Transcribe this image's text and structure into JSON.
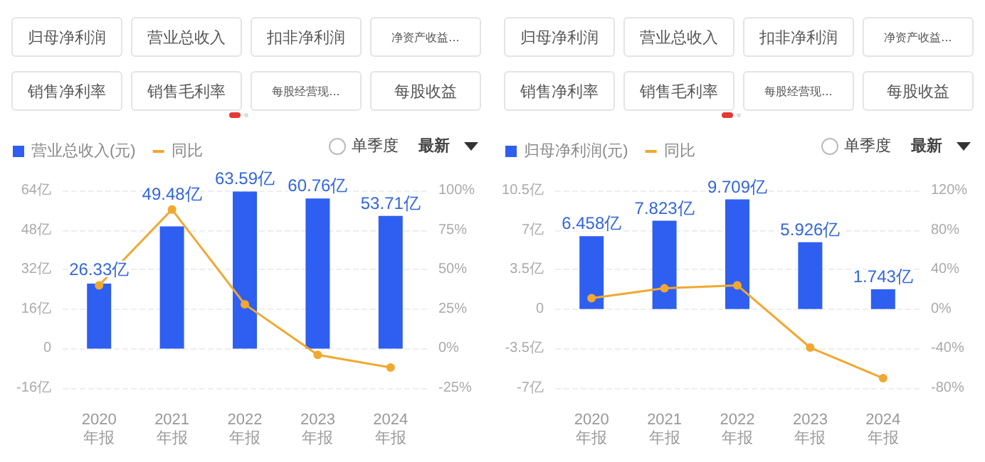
{
  "chart_data": [
    {
      "type": "bar",
      "annotations": [
        "归母净利润",
        "营业总收入",
        "扣非净利润",
        "净资产收益...",
        "销售净利率",
        "销售毛利率",
        "每股经营现...",
        "每股收益",
        "单季度",
        "最新"
      ],
      "categories": [
        "2020\n年报",
        "2021\n年报",
        "2022\n年报",
        "2023\n年报",
        "2024\n年报"
      ],
      "series": [
        {
          "name": "营业总收入(元)",
          "color": "#2f5ff0",
          "values": [
            26.33,
            49.48,
            63.59,
            60.76,
            53.71
          ],
          "value_labels": [
            "26.33亿",
            "49.48亿",
            "63.59亿",
            "60.76亿",
            "53.71亿"
          ]
        },
        {
          "name": "同比",
          "type": "line",
          "axis": "y2",
          "color": "#f0a830",
          "values": [
            40,
            88,
            28,
            -4,
            -12
          ]
        }
      ],
      "ylim": [
        -16,
        64
      ],
      "yticks": [
        {
          "value": -16,
          "label": "-16亿"
        },
        {
          "value": 0,
          "label": "0"
        },
        {
          "value": 16,
          "label": "16亿"
        },
        {
          "value": 32,
          "label": "32亿"
        },
        {
          "value": 48,
          "label": "48亿"
        },
        {
          "value": 64,
          "label": "64亿"
        }
      ],
      "y2lim": [
        -25,
        100
      ],
      "y2ticks": [
        {
          "value": -25,
          "label": "-25%"
        },
        {
          "value": 0,
          "label": "0%"
        },
        {
          "value": 25,
          "label": "25%"
        },
        {
          "value": 50,
          "label": "50%"
        },
        {
          "value": 75,
          "label": "75%"
        },
        {
          "value": 100,
          "label": "100%"
        }
      ],
      "grid": "y",
      "legend": "top left",
      "marker": "circle"
    },
    {
      "type": "bar",
      "annotations": [
        "归母净利润",
        "营业总收入",
        "扣非净利润",
        "净资产收益...",
        "销售净利率",
        "销售毛利率",
        "每股经营现...",
        "每股收益",
        "单季度",
        "最新"
      ],
      "categories": [
        "2020\n年报",
        "2021\n年报",
        "2022\n年报",
        "2023\n年报",
        "2024\n年报"
      ],
      "series": [
        {
          "name": "归母净利润(元)",
          "color": "#2f5ff0",
          "values": [
            6.458,
            7.823,
            9.709,
            5.926,
            1.743
          ],
          "value_labels": [
            "6.458亿",
            "7.823亿",
            "9.709亿",
            "5.926亿",
            "1.743亿"
          ]
        },
        {
          "name": "同比",
          "type": "line",
          "axis": "y2",
          "color": "#f0a830",
          "values": [
            11,
            21,
            24,
            -39,
            -70
          ]
        }
      ],
      "ylim": [
        -7,
        10.5
      ],
      "yticks": [
        {
          "value": -7,
          "label": "-7亿"
        },
        {
          "value": -3.5,
          "label": "-3.5亿"
        },
        {
          "value": 0,
          "label": "0"
        },
        {
          "value": 3.5,
          "label": "3.5亿"
        },
        {
          "value": 7,
          "label": "7亿"
        },
        {
          "value": 10.5,
          "label": "10.5亿"
        }
      ],
      "y2lim": [
        -80,
        120
      ],
      "y2ticks": [
        {
          "value": -80,
          "label": "-80%"
        },
        {
          "value": -40,
          "label": "-40%"
        },
        {
          "value": 0,
          "label": "0%"
        },
        {
          "value": 40,
          "label": "40%"
        },
        {
          "value": 80,
          "label": "80%"
        },
        {
          "value": 120,
          "label": "120%"
        }
      ],
      "grid": "y",
      "legend": "top left",
      "marker": "circle"
    }
  ]
}
